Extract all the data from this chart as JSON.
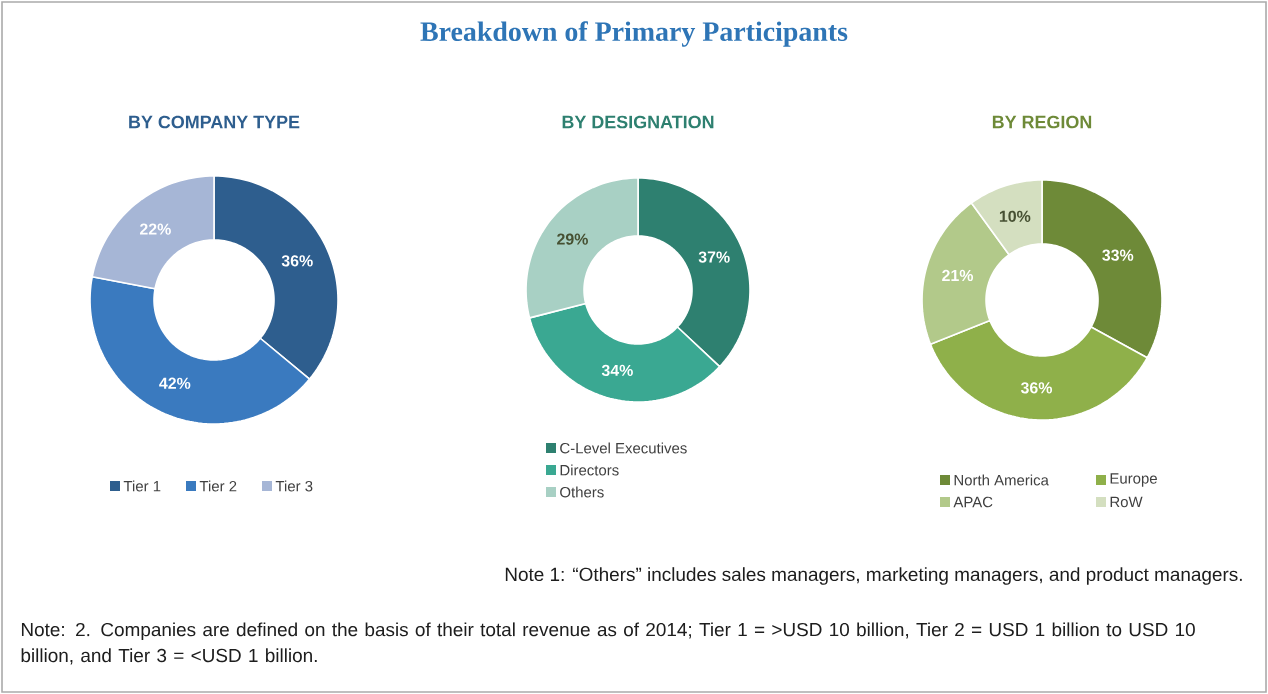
{
  "chart_data": [
    {
      "type": "other",
      "title": "Breakdown of Primary Participants",
      "annotations": [
        "Note 1: “Others” includes sales managers, marketing managers, and product managers.",
        "Note: 2. Companies are defined on the basis of their total revenue as of 2014; Tier 1 = >USD 10 billion, Tier 2 = USD 1 billion to USD 10 billion, and Tier 3 = <USD 1 billion."
      ]
    },
    {
      "type": "donut",
      "title": "BY COMPANY TYPE",
      "categories": [
        "Tier 1",
        "Tier 2",
        "Tier 3"
      ],
      "values": [
        36,
        42,
        22
      ],
      "value_labels": [
        "36%",
        "42%",
        "22%"
      ],
      "colors": [
        "#2e5e8e",
        "#3a7abf",
        "#a6b6d6"
      ],
      "legend": "bottom"
    },
    {
      "type": "donut",
      "title": "BY DESIGNATION",
      "categories": [
        "C-Level Executives",
        "Directors",
        "Others"
      ],
      "values": [
        37,
        34,
        29
      ],
      "value_labels": [
        "37%",
        "34%",
        "29%"
      ],
      "colors": [
        "#2e8070",
        "#3aa892",
        "#a8d0c4"
      ],
      "legend": "bottom"
    },
    {
      "type": "donut",
      "title": "BY REGION",
      "categories": [
        "North America",
        "Europe",
        "APAC",
        "RoW"
      ],
      "values": [
        33,
        36,
        21,
        10
      ],
      "value_labels": [
        "33%",
        "36%",
        "21%",
        "10%"
      ],
      "colors": [
        "#6e8a38",
        "#8fb04a",
        "#b2c98a",
        "#d4dfc0"
      ],
      "legend": "bottom"
    }
  ]
}
